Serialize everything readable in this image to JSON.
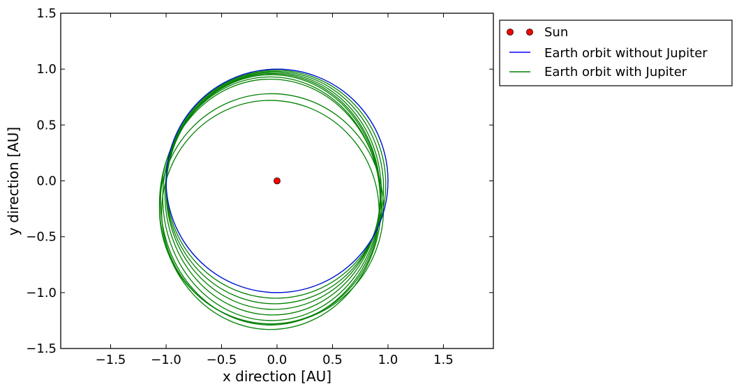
{
  "chart_data": {
    "type": "line",
    "title": "",
    "xlabel": "x direction [AU]",
    "ylabel": "y direction [AU]",
    "xlim": [
      -1.95,
      1.95
    ],
    "ylim": [
      -1.5,
      1.5
    ],
    "xticks": [
      -1.5,
      -1.0,
      -0.5,
      0.0,
      0.5,
      1.0,
      1.5
    ],
    "xtick_labels": [
      "−1.5",
      "−1.0",
      "−0.5",
      "0.0",
      "0.5",
      "1.0",
      "1.5"
    ],
    "yticks": [
      1.5,
      1.0,
      0.5,
      0.0,
      -0.5,
      -1.0,
      -1.5
    ],
    "ytick_labels": [
      "1.5",
      "1.0",
      "0.5",
      "0.0",
      "−0.5",
      "−1.0",
      "−1.5"
    ],
    "grid": false,
    "legend_position": "outside-right-top",
    "series": [
      {
        "name": "Sun",
        "kind": "marker",
        "color": "#ff0000",
        "points": [
          [
            0.0,
            0.0
          ]
        ]
      },
      {
        "name": "Earth orbit without Jupiter",
        "kind": "ellipse",
        "color": "#0000ff",
        "center": [
          0.0,
          0.0
        ],
        "radius_x": 1.0,
        "radius_y": 1.0
      },
      {
        "name": "Earth orbit with Jupiter",
        "kind": "ellipses",
        "color": "#008000",
        "ellipses": [
          {
            "center": [
              -0.0,
              0.0
            ],
            "rx": 1.0,
            "ry": 1.0
          },
          {
            "center": [
              -0.01,
              -0.03
            ],
            "rx": 0.99,
            "ry": 1.02
          },
          {
            "center": [
              -0.02,
              -0.06
            ],
            "rx": 0.98,
            "ry": 1.04
          },
          {
            "center": [
              -0.03,
              -0.09
            ],
            "rx": 0.97,
            "ry": 1.06
          },
          {
            "center": [
              -0.04,
              -0.12
            ],
            "rx": 0.97,
            "ry": 1.08
          },
          {
            "center": [
              -0.05,
              -0.15
            ],
            "rx": 0.98,
            "ry": 1.1
          },
          {
            "center": [
              -0.06,
              -0.18
            ],
            "rx": 0.99,
            "ry": 1.11
          },
          {
            "center": [
              -0.06,
              -0.21
            ],
            "rx": 1.0,
            "ry": 1.12
          },
          {
            "center": [
              -0.05,
              -0.25
            ],
            "rx": 1.01,
            "ry": 1.03
          },
          {
            "center": [
              -0.06,
              -0.28
            ],
            "rx": 0.98,
            "ry": 1.0
          }
        ]
      }
    ]
  }
}
